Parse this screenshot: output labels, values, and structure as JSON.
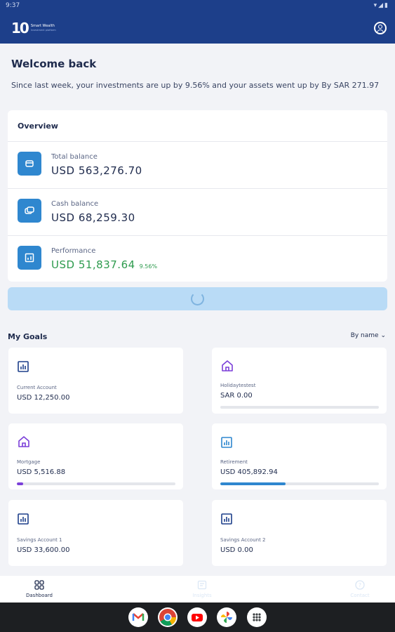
{
  "status_bar": {
    "time": "9:37",
    "icons": "▾◢▮"
  },
  "app": {
    "logo_mark": "10",
    "logo_name": "Smart Wealth",
    "logo_tagline": "Investment platform"
  },
  "welcome": {
    "title": "Welcome back",
    "subtitle": "Since last week, your investments are up by  9.56% and your assets went up by By SAR 271.97"
  },
  "overview": {
    "title": "Overview",
    "rows": [
      {
        "label": "Total balance",
        "value": "USD  563,276.70",
        "icon": "wallet-icon"
      },
      {
        "label": "Cash balance",
        "value": "USD  68,259.30",
        "icon": "cash-icon"
      },
      {
        "label": "Performance",
        "value": "USD  51,837.64",
        "pct": "9.56%",
        "icon": "chart-icon"
      }
    ]
  },
  "goals": {
    "title": "My Goals",
    "sort_label": "By name",
    "items": [
      {
        "name": "Current Account",
        "value": "USD  12,250.00",
        "icon": "bar-chart-icon",
        "progress": null
      },
      {
        "name": "Holidaytestest",
        "value": "SAR  0.00",
        "icon": "home-icon",
        "progress": 0
      },
      {
        "name": "Mortgage",
        "value": "USD  5,516.88",
        "icon": "home-icon",
        "progress": 0.04,
        "color": "#7b3fd9"
      },
      {
        "name": "Retirement",
        "value": "USD  405,892.94",
        "icon": "bar-chart-icon",
        "progress": 0.41,
        "color": "#2f87cf"
      },
      {
        "name": "Savings Account 1",
        "value": "USD  33,600.00",
        "icon": "bar-chart-icon",
        "progress": null
      },
      {
        "name": "Savings Account 2",
        "value": "USD  0.00",
        "icon": "bar-chart-icon",
        "progress": null
      }
    ]
  },
  "bottom_nav": [
    {
      "label": "Dashboard",
      "active": true
    },
    {
      "label": "Insights",
      "active": false
    },
    {
      "label": "Contact",
      "active": false
    }
  ],
  "colors": {
    "brand": "#1d3f8a",
    "accent": "#2f87cf",
    "positive": "#2e9b4e",
    "purple": "#7b3fd9"
  },
  "dock": [
    "gmail-icon",
    "chrome-icon",
    "youtube-icon",
    "photos-icon",
    "app-drawer-icon"
  ]
}
